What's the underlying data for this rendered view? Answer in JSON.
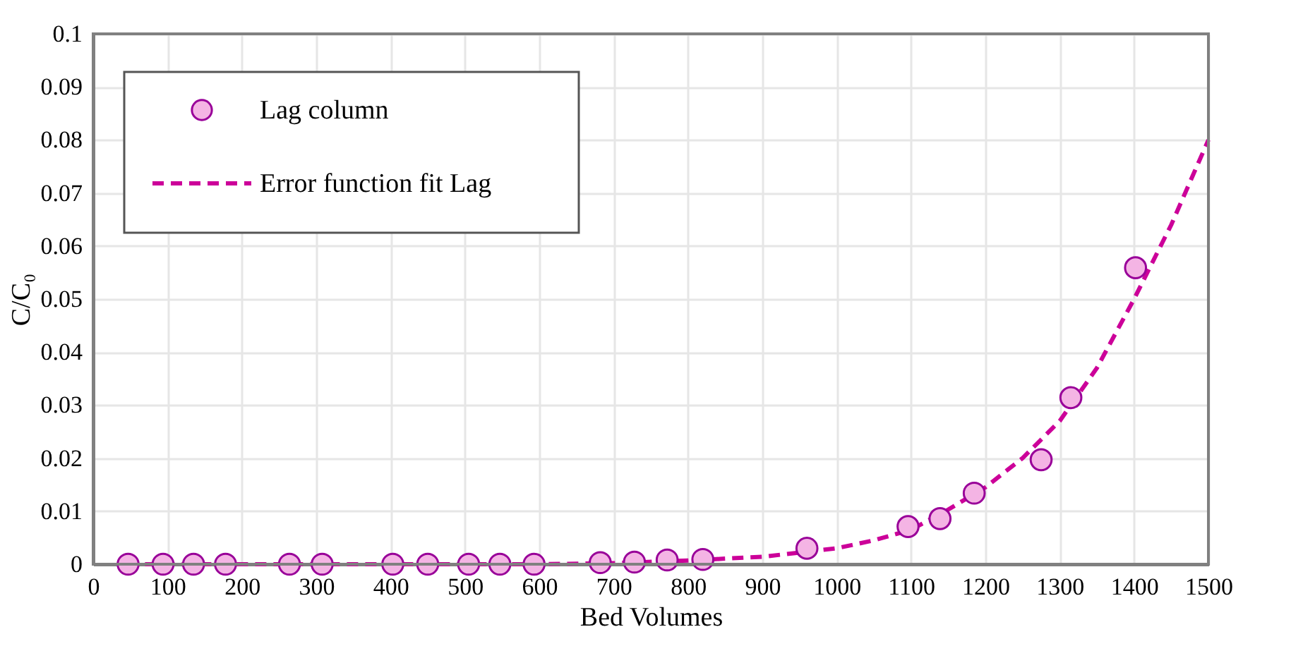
{
  "chart_data": {
    "type": "scatter",
    "xlabel": "Bed Volumes",
    "ylabel": "C/C₀",
    "xlim": [
      0,
      1500
    ],
    "xticks": [
      0,
      100,
      200,
      300,
      400,
      500,
      600,
      700,
      800,
      900,
      1000,
      1100,
      1200,
      1300,
      1400,
      1500
    ],
    "ylim": [
      0,
      0.1
    ],
    "yticks": [
      0,
      0.01,
      0.02,
      0.03,
      0.04,
      0.05,
      0.06,
      0.07,
      0.08,
      0.09,
      0.1
    ],
    "grid": true,
    "legend": "top left",
    "series": [
      {
        "name": "Lag column",
        "marker": "circle",
        "color": "#f4b4e4",
        "x": [
          47,
          94,
          135,
          178,
          264,
          308,
          403,
          450,
          505,
          547,
          593,
          682,
          728,
          772,
          820,
          960,
          1096,
          1139,
          1185,
          1275,
          1315,
          1402
        ],
        "values": [
          0,
          0,
          0,
          0,
          0,
          0,
          0,
          0,
          0,
          0,
          0,
          0.0003,
          0.0004,
          0.0008,
          0.0009,
          0.003,
          0.0071,
          0.0086,
          0.0134,
          0.0197,
          0.0314,
          0.0559
        ]
      },
      {
        "name": "Error function fit Lag",
        "type": "line",
        "line_style": "dashed",
        "color": "#cc0099",
        "x": [
          45,
          600,
          700,
          800,
          900,
          1000,
          1050,
          1100,
          1150,
          1200,
          1250,
          1300,
          1350,
          1400,
          1450,
          1500
        ],
        "values": [
          0,
          0,
          0.0002,
          0.0007,
          0.0014,
          0.003,
          0.0045,
          0.0065,
          0.0103,
          0.0145,
          0.02,
          0.027,
          0.037,
          0.05,
          0.064,
          0.08
        ]
      }
    ]
  }
}
